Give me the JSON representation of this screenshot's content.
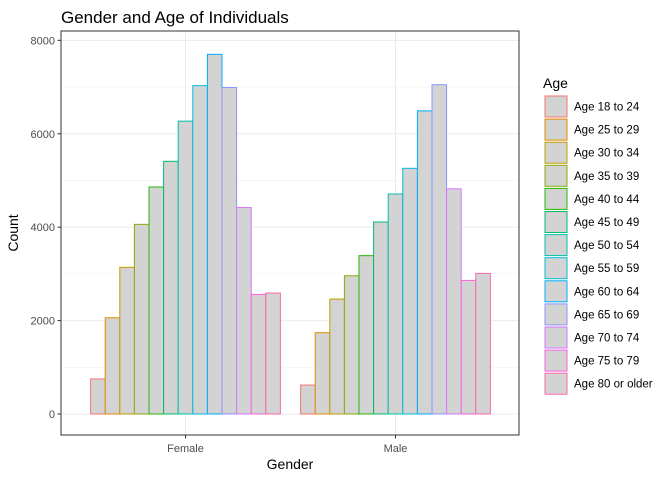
{
  "chart_data": {
    "type": "bar",
    "title": "Gender and Age of Individuals",
    "xlabel": "Gender",
    "ylabel": "Count",
    "categories": [
      "Female",
      "Male"
    ],
    "ylim": [
      -450,
      8200
    ],
    "yticks": [
      0,
      2000,
      4000,
      6000,
      8000
    ],
    "ytick_labels": [
      "0",
      "2000",
      "4000",
      "6000",
      "8000"
    ],
    "bar_fill": "#d3d3d3",
    "grid": true,
    "legend": {
      "title": "Age",
      "position": "right"
    },
    "series": [
      {
        "name": "Age 18 to 24",
        "color": "#F8766D",
        "values": [
          750,
          620
        ]
      },
      {
        "name": "Age 25 to 29",
        "color": "#E18A00",
        "values": [
          2060,
          1740
        ]
      },
      {
        "name": "Age 30 to 34",
        "color": "#BE9C00",
        "values": [
          3140,
          2460
        ]
      },
      {
        "name": "Age 35 to 39",
        "color": "#8CAB00",
        "values": [
          4060,
          2960
        ]
      },
      {
        "name": "Age 40 to 44",
        "color": "#24B700",
        "values": [
          4860,
          3390
        ]
      },
      {
        "name": "Age 45 to 49",
        "color": "#00BE70",
        "values": [
          5410,
          4110
        ]
      },
      {
        "name": "Age 50 to 54",
        "color": "#00C1AB",
        "values": [
          6270,
          4710
        ]
      },
      {
        "name": "Age 55 to 59",
        "color": "#00BBDA",
        "values": [
          7030,
          5260
        ]
      },
      {
        "name": "Age 60 to 64",
        "color": "#00ACFC",
        "values": [
          7700,
          6490
        ]
      },
      {
        "name": "Age 65 to 69",
        "color": "#8B93FF",
        "values": [
          6990,
          7050
        ]
      },
      {
        "name": "Age 70 to 74",
        "color": "#D575FE",
        "values": [
          4420,
          4820
        ]
      },
      {
        "name": "Age 75 to 79",
        "color": "#F962DD",
        "values": [
          2560,
          2860
        ]
      },
      {
        "name": "Age 80 or older",
        "color": "#FF65AC",
        "values": [
          2590,
          3010
        ]
      }
    ]
  }
}
